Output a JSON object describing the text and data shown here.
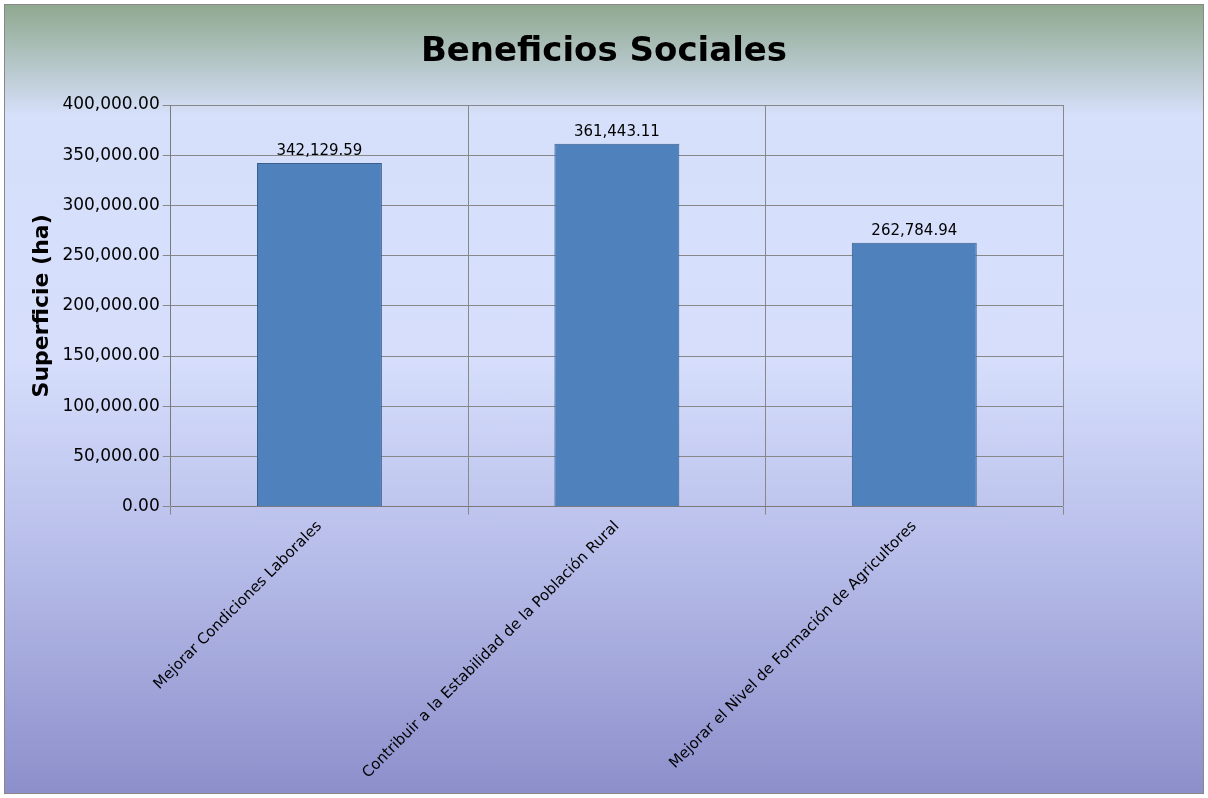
{
  "chart_data": {
    "type": "bar",
    "title": "Beneficios Sociales",
    "ylabel": "Superficie (ha)",
    "categories": [
      "Mejorar Condiciones Laborales",
      "Contribuir a la Estabilidad de la Población Rural",
      "Mejorar el Nivel de Formación de Agricultores"
    ],
    "values": [
      342129.59,
      361443.11,
      262784.94
    ],
    "value_labels": [
      "342,129.59",
      "361,443.11",
      "262,784.94"
    ],
    "color": "#4f81bd",
    "ylim": [
      0,
      400000
    ],
    "yticks": [
      {
        "value": 0,
        "label": "0.00"
      },
      {
        "value": 50000,
        "label": "50,000.00"
      },
      {
        "value": 100000,
        "label": "100,000.00"
      },
      {
        "value": 150000,
        "label": "150,000.00"
      },
      {
        "value": 200000,
        "label": "200,000.00"
      },
      {
        "value": 250000,
        "label": "250,000.00"
      },
      {
        "value": 300000,
        "label": "300,000.00"
      },
      {
        "value": 350000,
        "label": "350,000.00"
      },
      {
        "value": 400000,
        "label": "400,000.00"
      }
    ],
    "grid": true,
    "legend": false
  }
}
